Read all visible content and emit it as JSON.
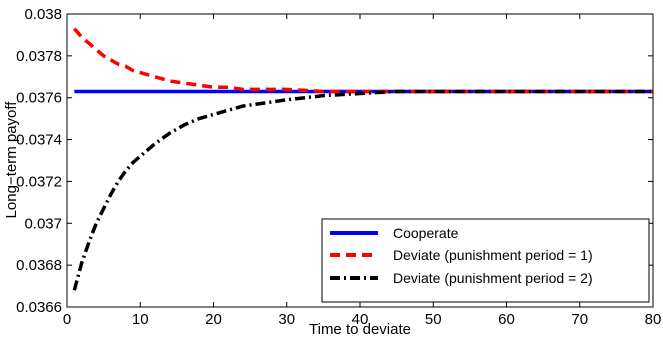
{
  "chart_data": {
    "type": "line",
    "title": "",
    "xlabel": "Time to deviate",
    "ylabel": "Long−term payoff",
    "xlim": [
      0,
      80
    ],
    "ylim": [
      0.0366,
      0.038
    ],
    "xticks": [
      0,
      10,
      20,
      30,
      40,
      50,
      60,
      70,
      80
    ],
    "xtick_labels": [
      "0",
      "10",
      "20",
      "30",
      "40",
      "50",
      "60",
      "70",
      "80"
    ],
    "yticks": [
      0.0366,
      0.0368,
      0.037,
      0.0372,
      0.0374,
      0.0376,
      0.0378,
      0.038
    ],
    "ytick_labels": [
      "0.0366",
      "0.0368",
      "0.037",
      "0.0372",
      "0.0374",
      "0.0376",
      "0.0378",
      "0.038"
    ],
    "grid": false,
    "legend_position": "bottom-right",
    "x": [
      1,
      2,
      3,
      4,
      5,
      6,
      7,
      8,
      9,
      10,
      12,
      14,
      16,
      18,
      20,
      22,
      24,
      26,
      28,
      30,
      35,
      40,
      45,
      50,
      55,
      60,
      65,
      70,
      75,
      80
    ],
    "series": [
      {
        "name": "Cooperate",
        "color": "#0000ff",
        "style": "solid",
        "values": [
          0.03763,
          0.03763,
          0.03763,
          0.03763,
          0.03763,
          0.03763,
          0.03763,
          0.03763,
          0.03763,
          0.03763,
          0.03763,
          0.03763,
          0.03763,
          0.03763,
          0.03763,
          0.03763,
          0.03763,
          0.03763,
          0.03763,
          0.03763,
          0.03763,
          0.03763,
          0.03763,
          0.03763,
          0.03763,
          0.03763,
          0.03763,
          0.03763,
          0.03763,
          0.03763
        ]
      },
      {
        "name": "Deviate (punishment period = 1)",
        "color": "#ff0000",
        "style": "dashed",
        "values": [
          0.03793,
          0.03789,
          0.03786,
          0.03783,
          0.0378,
          0.03778,
          0.03776,
          0.03775,
          0.03773,
          0.03772,
          0.0377,
          0.03768,
          0.03767,
          0.03766,
          0.03765,
          0.03765,
          0.03764,
          0.03764,
          0.03764,
          0.03764,
          0.03763,
          0.03763,
          0.03763,
          0.03763,
          0.03763,
          0.03763,
          0.03763,
          0.03763,
          0.03763,
          0.03763
        ]
      },
      {
        "name": "Deviate (punishment period = 2)",
        "color": "#000000",
        "style": "dashdot",
        "values": [
          0.03668,
          0.03681,
          0.03691,
          0.037,
          0.03707,
          0.03714,
          0.0372,
          0.03725,
          0.03729,
          0.03732,
          0.03738,
          0.03743,
          0.03747,
          0.0375,
          0.03752,
          0.03754,
          0.03756,
          0.03757,
          0.03758,
          0.03759,
          0.03761,
          0.03762,
          0.03763,
          0.03763,
          0.03763,
          0.03763,
          0.03763,
          0.03763,
          0.03763,
          0.03763
        ]
      }
    ]
  }
}
